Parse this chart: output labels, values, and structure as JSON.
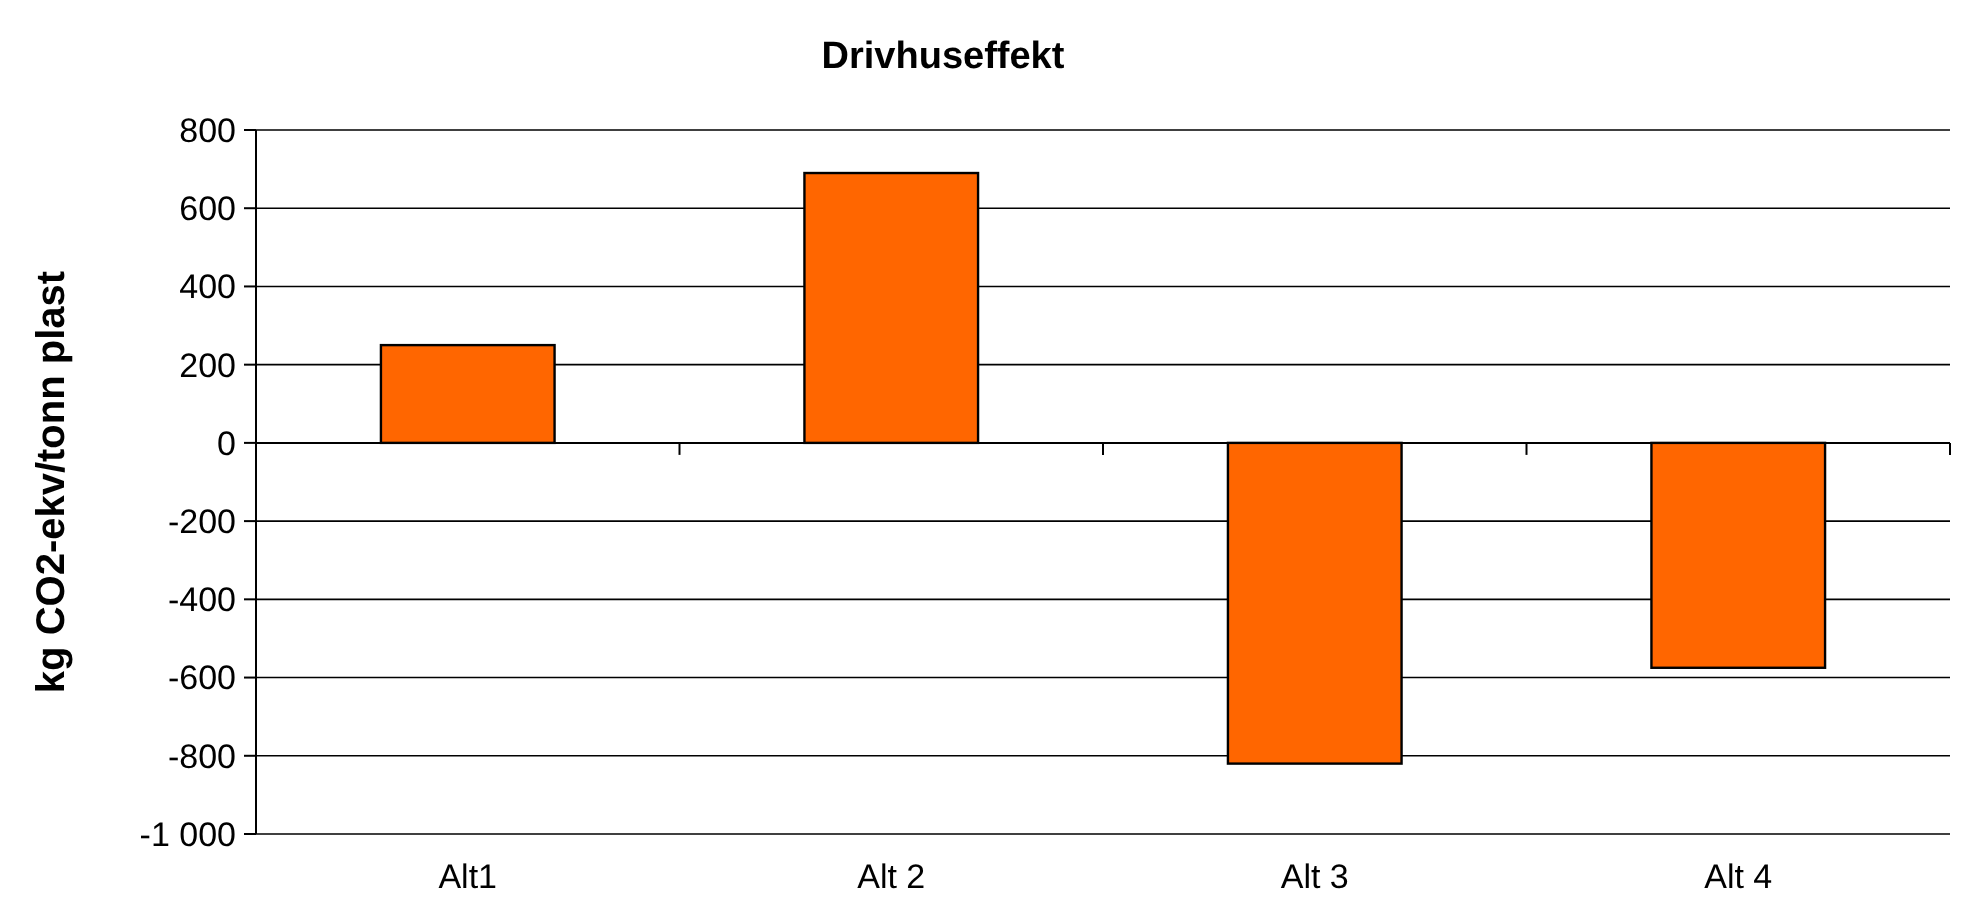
{
  "chart_data": {
    "type": "bar",
    "title": "Drivhuseffekt",
    "ylabel": "kg CO2-ekv/tonn plast",
    "categories": [
      "Alt1",
      "Alt 2",
      "Alt 3",
      "Alt 4"
    ],
    "values": [
      250,
      690,
      -820,
      -575
    ],
    "color": "#ff6600",
    "ylim": [
      -1000,
      800
    ],
    "yticks": [
      {
        "value": -1000,
        "label": "-1 000"
      },
      -800,
      -600,
      -400,
      -200,
      0,
      200,
      400,
      600,
      800
    ],
    "grid": "y"
  }
}
